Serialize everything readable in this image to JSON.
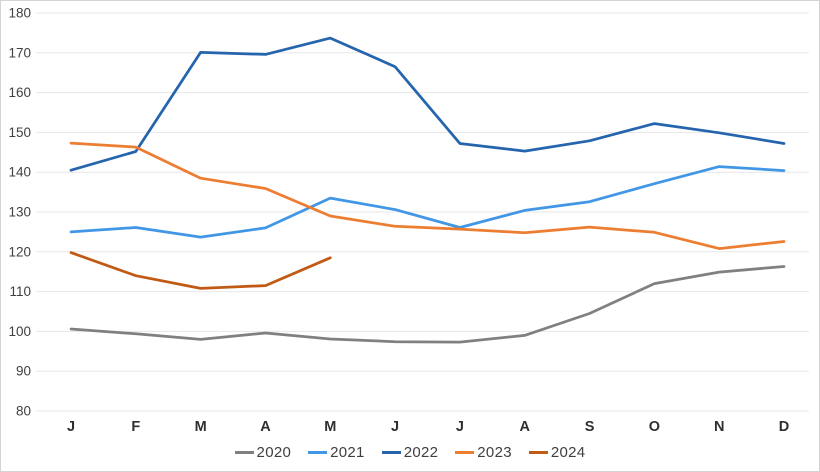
{
  "chart_data": {
    "type": "line",
    "title": "",
    "xlabel": "",
    "ylabel": "",
    "categories": [
      "J",
      "F",
      "M",
      "A",
      "M",
      "J",
      "J",
      "A",
      "S",
      "O",
      "N",
      "D"
    ],
    "series": [
      {
        "name": "2020",
        "color": "#808080",
        "values": [
          100.6,
          99.4,
          98.0,
          99.6,
          98.1,
          97.4,
          97.3,
          99.0,
          104.5,
          112.0,
          114.9,
          116.3
        ]
      },
      {
        "name": "2021",
        "color": "#4197E6",
        "values": [
          125.0,
          126.1,
          123.7,
          126.0,
          133.5,
          130.6,
          126.1,
          130.4,
          132.6,
          137.1,
          141.4,
          140.4
        ]
      },
      {
        "name": "2022",
        "color": "#2565AE",
        "values": [
          140.5,
          145.2,
          170.1,
          169.6,
          173.7,
          166.5,
          147.2,
          145.3,
          147.9,
          152.2,
          149.9,
          147.2
        ]
      },
      {
        "name": "2023",
        "color": "#ED7D31",
        "values": [
          147.3,
          146.3,
          138.5,
          135.9,
          129.0,
          126.4,
          125.7,
          124.8,
          126.2,
          124.9,
          120.8,
          122.6
        ]
      },
      {
        "name": "2024",
        "color": "#C05A15",
        "values": [
          119.8,
          114.0,
          110.8,
          111.5,
          118.5,
          null,
          null,
          null,
          null,
          null,
          null,
          null
        ]
      }
    ],
    "ylim": [
      80,
      180
    ],
    "ytick_step": 10,
    "yticks": [
      80,
      90,
      100,
      110,
      120,
      130,
      140,
      150,
      160,
      170,
      180
    ],
    "grid": true,
    "grid_orientation": "horizontal",
    "legend_position": "bottom"
  }
}
